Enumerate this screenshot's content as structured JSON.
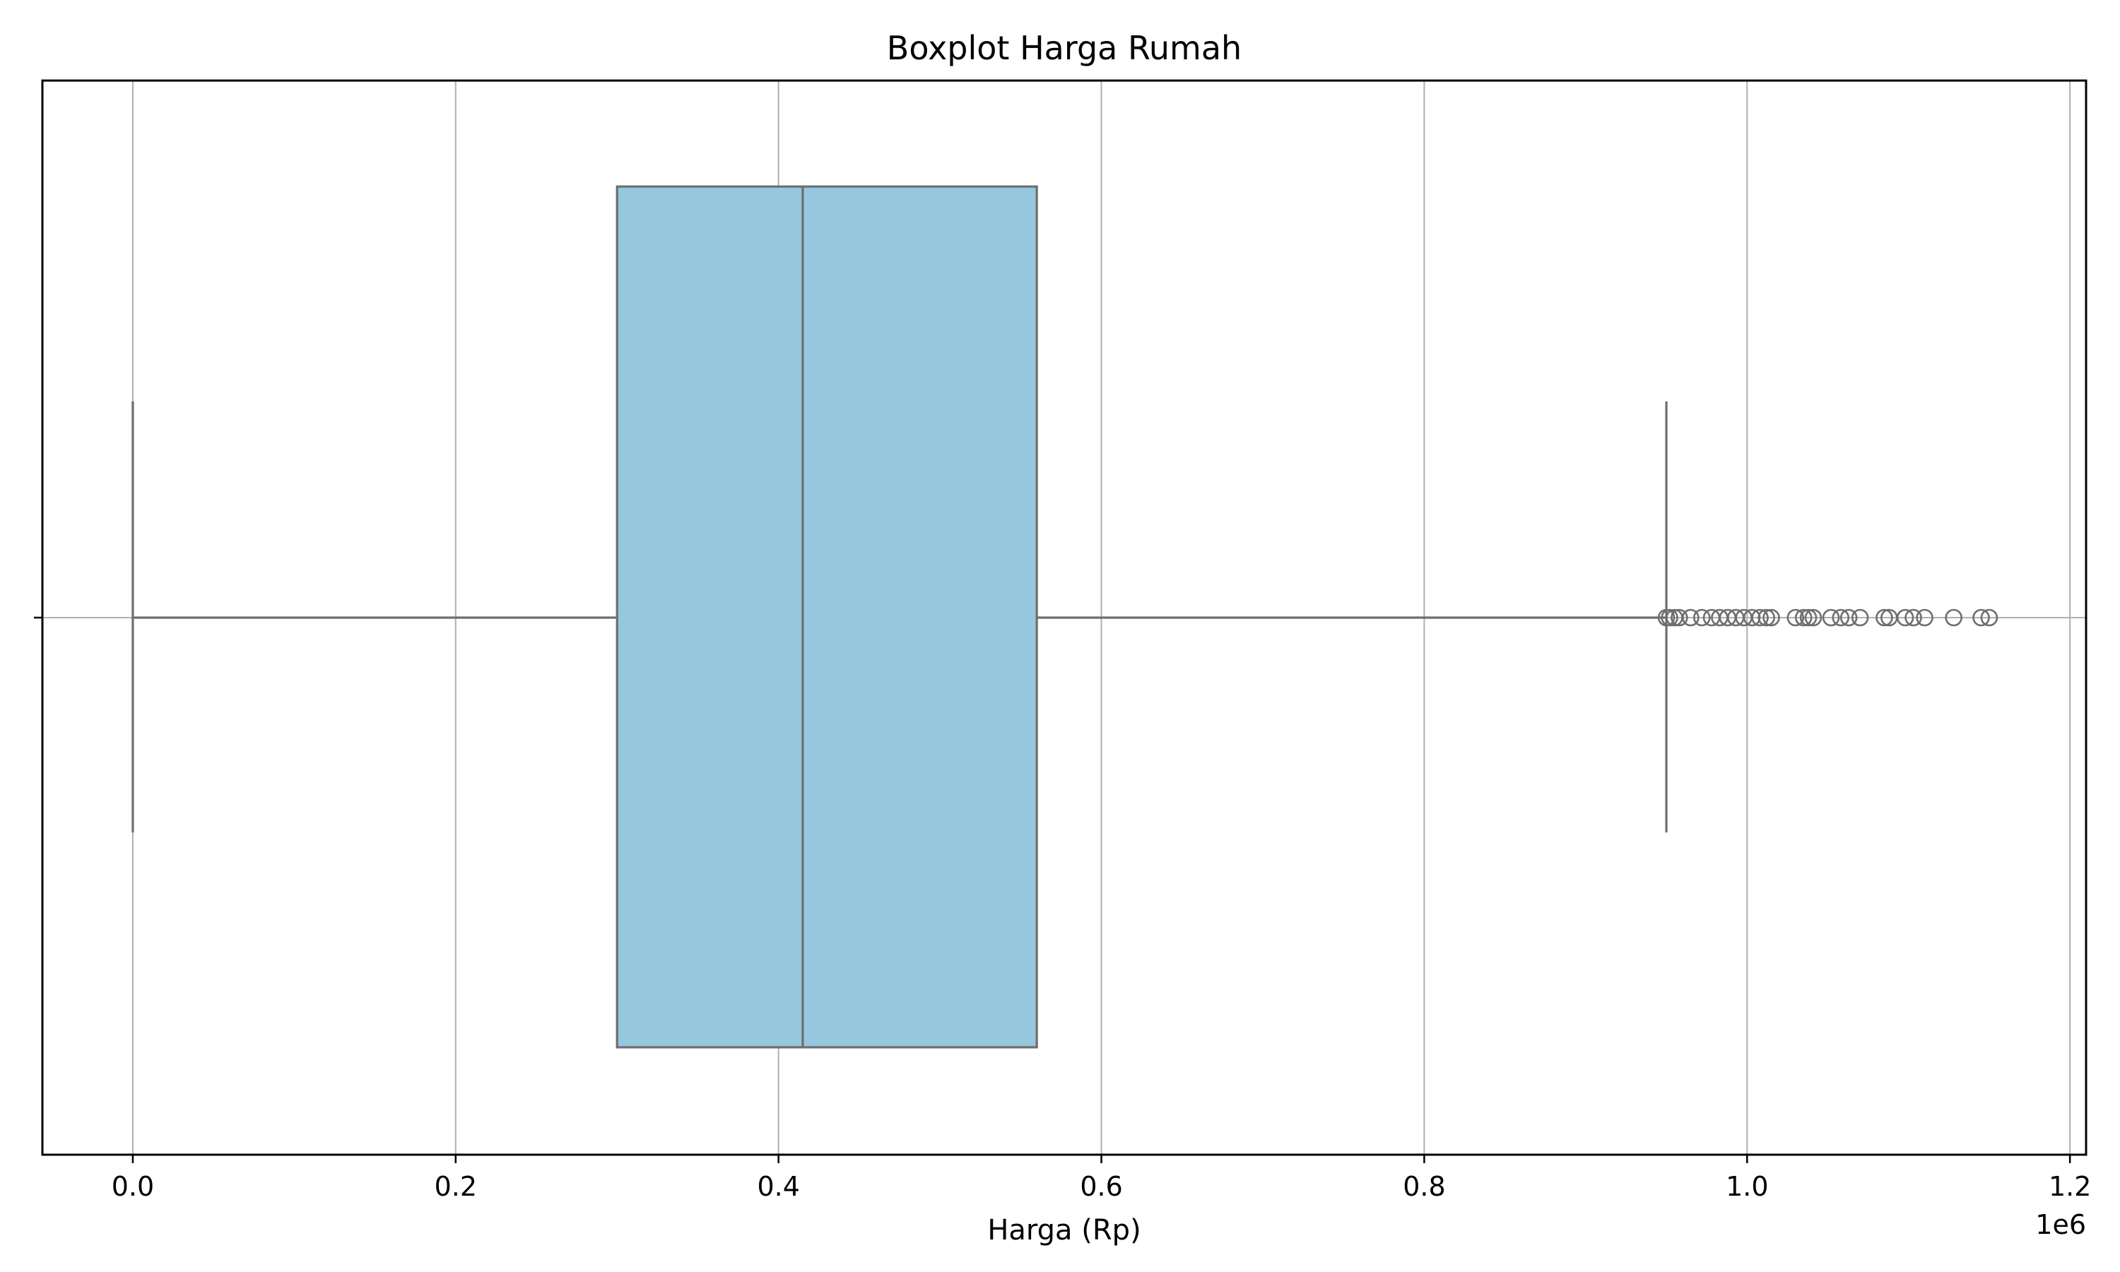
{
  "chart_data": {
    "type": "boxplot",
    "orientation": "horizontal",
    "title": "Boxplot Harga Rumah",
    "xlabel": "Harga (Rp)",
    "ylabel": "",
    "x_offset_label": "1e6",
    "x_scale": 1000000,
    "xlim": [
      -0.056,
      1.21
    ],
    "xticks": [
      0.0,
      0.2,
      0.4,
      0.6,
      0.8,
      1.0,
      1.2
    ],
    "xtick_labels": [
      "0.0",
      "0.2",
      "0.4",
      "0.6",
      "0.8",
      "1.0",
      "1.2"
    ],
    "grid": true,
    "box": {
      "whisker_low": 0.0,
      "q1": 0.3,
      "median": 0.415,
      "q3": 0.56,
      "whisker_high": 0.95
    },
    "outliers": [
      0.95,
      0.952,
      0.955,
      0.958,
      0.965,
      0.972,
      0.978,
      0.983,
      0.988,
      0.993,
      0.998,
      1.003,
      1.008,
      1.012,
      1.015,
      1.03,
      1.035,
      1.038,
      1.041,
      1.052,
      1.058,
      1.063,
      1.07,
      1.085,
      1.088,
      1.098,
      1.103,
      1.11,
      1.128,
      1.145,
      1.15
    ],
    "colors": {
      "box_fill": "#95c8de",
      "box_edge": "#6e6e6e",
      "grid": "#b0b0b0",
      "axes": "#000000"
    }
  }
}
